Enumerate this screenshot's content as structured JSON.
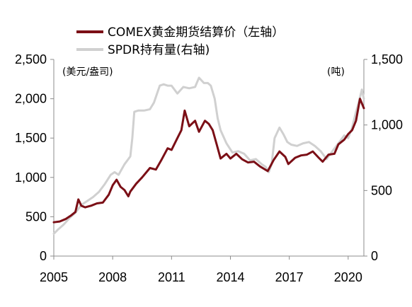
{
  "chart_data": {
    "type": "line",
    "title": "",
    "xlabel": "",
    "left_axis": {
      "unit": "(美元/盎司)",
      "ylim": [
        0,
        2500
      ],
      "ticks": [
        "0",
        "500",
        "1,000",
        "1,500",
        "2,000",
        "2,500"
      ]
    },
    "right_axis": {
      "unit": "(吨)",
      "ylim": [
        0,
        1500
      ],
      "ticks": [
        "0",
        "500",
        "1,000",
        "1,500"
      ]
    },
    "x_ticks": [
      "2005",
      "2008",
      "2011",
      "2014",
      "2017",
      "2020"
    ],
    "xlim": [
      2005,
      2020.8
    ],
    "grid": false,
    "legend_position": "top",
    "series": [
      {
        "name": "COMEX黄金期货结算价（左轴）",
        "axis": "left",
        "color": "#7b0f16",
        "x": [
          2005.0,
          2005.3,
          2005.6,
          2005.9,
          2006.1,
          2006.25,
          2006.4,
          2006.6,
          2006.9,
          2007.2,
          2007.5,
          2007.8,
          2008.0,
          2008.2,
          2008.4,
          2008.6,
          2008.8,
          2008.9,
          2009.2,
          2009.5,
          2009.9,
          2010.2,
          2010.5,
          2010.8,
          2011.0,
          2011.3,
          2011.5,
          2011.67,
          2011.9,
          2012.2,
          2012.4,
          2012.7,
          2012.9,
          2013.1,
          2013.3,
          2013.5,
          2013.8,
          2014.0,
          2014.3,
          2014.6,
          2014.9,
          2015.2,
          2015.5,
          2015.9,
          2016.2,
          2016.5,
          2016.8,
          2016.95,
          2017.3,
          2017.6,
          2017.9,
          2018.2,
          2018.5,
          2018.7,
          2019.0,
          2019.3,
          2019.5,
          2019.8,
          2020.0,
          2020.2,
          2020.4,
          2020.6,
          2020.8
        ],
        "values": [
          430,
          440,
          470,
          520,
          560,
          720,
          640,
          620,
          640,
          670,
          680,
          780,
          900,
          970,
          880,
          840,
          760,
          820,
          920,
          1000,
          1120,
          1100,
          1230,
          1370,
          1350,
          1500,
          1600,
          1850,
          1650,
          1720,
          1580,
          1720,
          1680,
          1600,
          1420,
          1240,
          1300,
          1240,
          1300,
          1230,
          1190,
          1200,
          1140,
          1080,
          1220,
          1330,
          1260,
          1170,
          1250,
          1280,
          1290,
          1330,
          1250,
          1200,
          1290,
          1300,
          1420,
          1480,
          1550,
          1600,
          1720,
          2000,
          1880
        ]
      },
      {
        "name": "SPDR持有量(右轴)",
        "axis": "right",
        "color": "#d0d0d0",
        "x": [
          2005.0,
          2005.2,
          2005.5,
          2005.8,
          2006.1,
          2006.4,
          2006.7,
          2007.0,
          2007.3,
          2007.6,
          2007.9,
          2008.1,
          2008.3,
          2008.6,
          2008.9,
          2009.0,
          2009.1,
          2009.3,
          2009.6,
          2009.9,
          2010.1,
          2010.4,
          2010.6,
          2010.8,
          2011.0,
          2011.3,
          2011.6,
          2011.9,
          2012.2,
          2012.4,
          2012.65,
          2012.85,
          2013.0,
          2013.2,
          2013.35,
          2013.5,
          2013.8,
          2014.1,
          2014.4,
          2014.7,
          2015.0,
          2015.3,
          2015.6,
          2015.8,
          2015.95,
          2016.1,
          2016.25,
          2016.5,
          2016.7,
          2016.9,
          2017.1,
          2017.4,
          2017.7,
          2018.0,
          2018.3,
          2018.6,
          2018.9,
          2019.2,
          2019.5,
          2019.8,
          2020.0,
          2020.2,
          2020.4,
          2020.55,
          2020.7,
          2020.8
        ],
        "values": [
          170,
          200,
          240,
          290,
          330,
          390,
          420,
          450,
          490,
          550,
          620,
          640,
          620,
          700,
          760,
          900,
          1100,
          1110,
          1110,
          1120,
          1170,
          1300,
          1310,
          1300,
          1300,
          1240,
          1290,
          1280,
          1290,
          1360,
          1320,
          1320,
          1300,
          1200,
          1050,
          960,
          860,
          790,
          800,
          780,
          730,
          740,
          700,
          680,
          640,
          700,
          900,
          980,
          930,
          870,
          850,
          840,
          860,
          870,
          840,
          800,
          740,
          800,
          860,
          920,
          900,
          980,
          1100,
          1180,
          1270,
          1200
        ]
      }
    ]
  }
}
